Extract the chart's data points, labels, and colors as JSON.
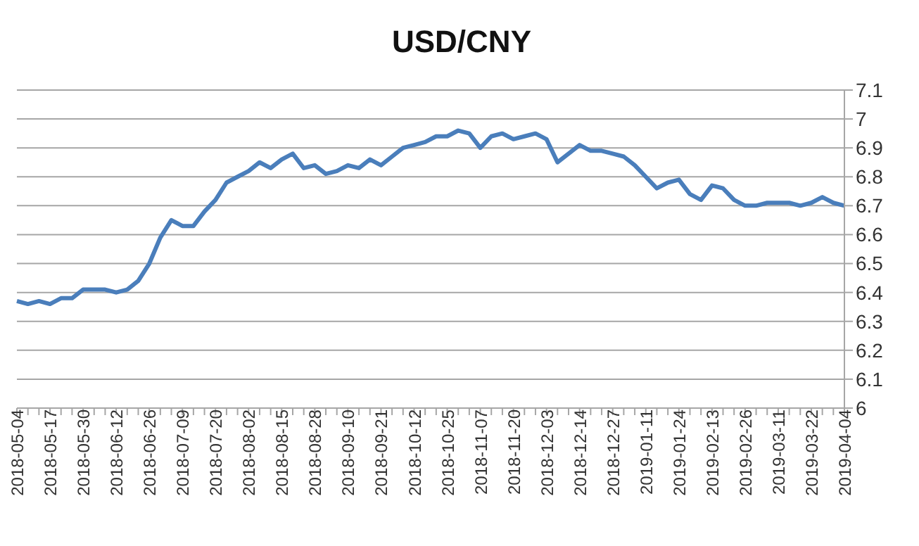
{
  "chart_data": {
    "type": "line",
    "title": "USD/CNY",
    "categories": [
      "2018-05-04",
      null,
      null,
      "2018-05-17",
      null,
      null,
      "2018-05-30",
      null,
      null,
      "2018-06-12",
      null,
      null,
      "2018-06-26",
      null,
      null,
      "2018-07-09",
      null,
      null,
      "2018-07-20",
      null,
      null,
      "2018-08-02",
      null,
      null,
      "2018-08-15",
      null,
      null,
      "2018-08-28",
      null,
      null,
      "2018-09-10",
      null,
      null,
      "2018-09-21",
      null,
      null,
      "2018-10-12",
      null,
      null,
      "2018-10-25",
      null,
      null,
      "2018-11-07",
      null,
      null,
      "2018-11-20",
      null,
      null,
      "2018-12-03",
      null,
      null,
      "2018-12-14",
      null,
      null,
      "2018-12-27",
      null,
      null,
      "2019-01-11",
      null,
      null,
      "2019-01-24",
      null,
      null,
      "2019-02-13",
      null,
      null,
      "2019-02-26",
      null,
      null,
      "2019-03-11",
      null,
      null,
      "2019-03-22",
      null,
      null,
      "2019-04-04"
    ],
    "series": [
      {
        "color": "#4a7ebb",
        "values": [
          6.37,
          6.36,
          6.37,
          6.36,
          6.38,
          6.38,
          6.41,
          6.41,
          6.41,
          6.4,
          6.41,
          6.44,
          6.5,
          6.59,
          6.65,
          6.63,
          6.63,
          6.68,
          6.72,
          6.78,
          6.8,
          6.82,
          6.85,
          6.83,
          6.86,
          6.88,
          6.83,
          6.84,
          6.81,
          6.82,
          6.84,
          6.83,
          6.86,
          6.84,
          6.87,
          6.9,
          6.91,
          6.92,
          6.94,
          6.94,
          6.96,
          6.95,
          6.9,
          6.94,
          6.95,
          6.93,
          6.94,
          6.95,
          6.93,
          6.85,
          6.88,
          6.91,
          6.89,
          6.89,
          6.88,
          6.87,
          6.84,
          6.8,
          6.76,
          6.78,
          6.79,
          6.74,
          6.72,
          6.77,
          6.76,
          6.72,
          6.7,
          6.7,
          6.71,
          6.71,
          6.71,
          6.7,
          6.71,
          6.73,
          6.71,
          6.7
        ]
      }
    ],
    "ylim": [
      6,
      7.1
    ],
    "yticks": [
      6,
      6.1,
      6.2,
      6.3,
      6.4,
      6.5,
      6.6,
      6.7,
      6.8,
      6.9,
      7,
      7.1
    ],
    "grid": "y",
    "legend": false,
    "marker": "none",
    "line_style": "solid"
  }
}
